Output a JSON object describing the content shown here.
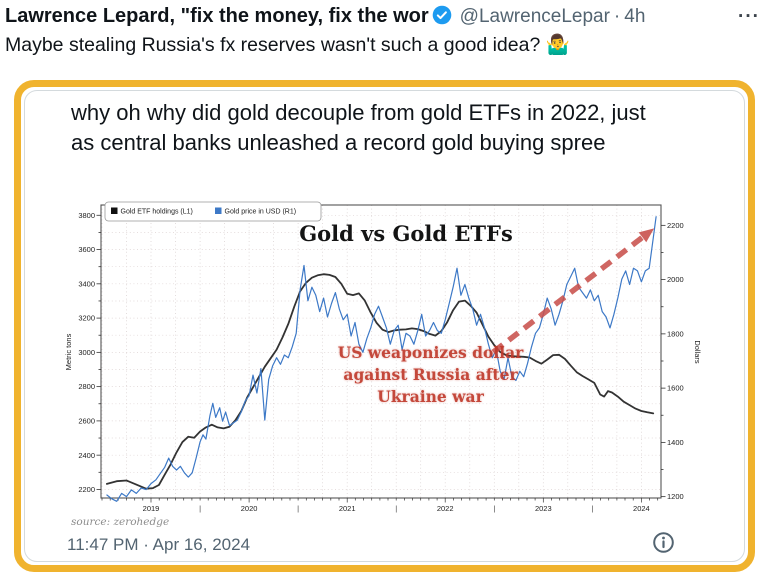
{
  "header": {
    "display_name": "Lawrence Lepard, \"fix the money, fix the wor",
    "handle": "@LawrenceLepar",
    "separator": "·",
    "time": "4h",
    "more_label": "···"
  },
  "tweet": {
    "body": "Maybe stealing Russia's fx reserves wasn't such a good idea? 🤷‍♂️"
  },
  "quote": {
    "text": "why oh why did gold decouple from gold ETFs in 2022, just as central banks unleashed a record gold buying spree",
    "timestamp": "11:47 PM · Apr 16, 2024"
  },
  "colors": {
    "accent_border": "#F0B32E",
    "verified_blue": "#1D9BF0",
    "muted_text": "#536471",
    "body_text": "#0F1419"
  },
  "chart_data": {
    "type": "line",
    "title": "Gold vs Gold ETFs",
    "source_note": "source: zerohedge",
    "grid": true,
    "legend_position": "top-left",
    "x_axis": {
      "lim": [
        2018.49,
        2024.2
      ],
      "year_labels": [
        2019,
        2020,
        2021,
        2022,
        2023,
        2024
      ],
      "mid_tick_label": "|"
    },
    "left_axis": {
      "label": "Metric tons",
      "lim": [
        2150,
        3860
      ],
      "ticks": [
        2200,
        2400,
        2600,
        2800,
        3000,
        3200,
        3400,
        3600,
        3800
      ]
    },
    "right_axis": {
      "label": "Dollars",
      "lim": [
        1195,
        2275
      ],
      "ticks": [
        1200,
        1400,
        1600,
        1800,
        2000,
        2200
      ]
    },
    "annotation": {
      "lines": [
        "US weaponizes dollar",
        "against Russia after",
        "Ukraine war"
      ],
      "x": 2021.85,
      "y": 1725,
      "color": "#C0392B"
    },
    "arrow": {
      "from": [
        2022.49,
        1733
      ],
      "to": [
        2024.13,
        2189
      ],
      "color": "#C9514D"
    },
    "series": [
      {
        "name": "Gold ETF holdings (L1)",
        "axis": "left",
        "color": "#333333",
        "width": 1.8,
        "points": [
          [
            2018.55,
            2232
          ],
          [
            2018.65,
            2248
          ],
          [
            2018.75,
            2252
          ],
          [
            2018.85,
            2228
          ],
          [
            2018.95,
            2204
          ],
          [
            2019.02,
            2208
          ],
          [
            2019.08,
            2226
          ],
          [
            2019.14,
            2286
          ],
          [
            2019.2,
            2346
          ],
          [
            2019.26,
            2416
          ],
          [
            2019.32,
            2476
          ],
          [
            2019.38,
            2508
          ],
          [
            2019.44,
            2502
          ],
          [
            2019.5,
            2538
          ],
          [
            2019.56,
            2562
          ],
          [
            2019.62,
            2578
          ],
          [
            2019.68,
            2562
          ],
          [
            2019.74,
            2556
          ],
          [
            2019.8,
            2566
          ],
          [
            2019.86,
            2604
          ],
          [
            2019.92,
            2656
          ],
          [
            2019.98,
            2736
          ],
          [
            2020.04,
            2796
          ],
          [
            2020.1,
            2856
          ],
          [
            2020.16,
            2916
          ],
          [
            2020.22,
            2966
          ],
          [
            2020.28,
            3016
          ],
          [
            2020.34,
            3086
          ],
          [
            2020.4,
            3166
          ],
          [
            2020.46,
            3266
          ],
          [
            2020.52,
            3356
          ],
          [
            2020.58,
            3406
          ],
          [
            2020.64,
            3436
          ],
          [
            2020.7,
            3450
          ],
          [
            2020.76,
            3456
          ],
          [
            2020.82,
            3452
          ],
          [
            2020.88,
            3440
          ],
          [
            2020.94,
            3400
          ],
          [
            2021.0,
            3342
          ],
          [
            2021.06,
            3334
          ],
          [
            2021.12,
            3344
          ],
          [
            2021.18,
            3302
          ],
          [
            2021.24,
            3232
          ],
          [
            2021.3,
            3172
          ],
          [
            2021.36,
            3132
          ],
          [
            2021.42,
            3118
          ],
          [
            2021.48,
            3128
          ],
          [
            2021.54,
            3132
          ],
          [
            2021.6,
            3134
          ],
          [
            2021.66,
            3140
          ],
          [
            2021.72,
            3136
          ],
          [
            2021.78,
            3124
          ],
          [
            2021.84,
            3108
          ],
          [
            2021.9,
            3098
          ],
          [
            2021.96,
            3124
          ],
          [
            2022.02,
            3176
          ],
          [
            2022.08,
            3246
          ],
          [
            2022.14,
            3296
          ],
          [
            2022.2,
            3302
          ],
          [
            2022.26,
            3272
          ],
          [
            2022.32,
            3232
          ],
          [
            2022.38,
            3162
          ],
          [
            2022.44,
            3092
          ],
          [
            2022.5,
            3042
          ],
          [
            2022.56,
            3002
          ],
          [
            2022.62,
            2984
          ],
          [
            2022.68,
            2978
          ],
          [
            2022.74,
            2976
          ],
          [
            2022.8,
            2974
          ],
          [
            2022.86,
            2970
          ],
          [
            2022.92,
            2950
          ],
          [
            2022.98,
            2934
          ],
          [
            2023.04,
            2958
          ],
          [
            2023.1,
            2984
          ],
          [
            2023.16,
            2986
          ],
          [
            2023.22,
            2962
          ],
          [
            2023.28,
            2922
          ],
          [
            2023.34,
            2884
          ],
          [
            2023.4,
            2862
          ],
          [
            2023.46,
            2842
          ],
          [
            2023.52,
            2822
          ],
          [
            2023.58,
            2754
          ],
          [
            2023.62,
            2742
          ],
          [
            2023.66,
            2774
          ],
          [
            2023.7,
            2766
          ],
          [
            2023.76,
            2742
          ],
          [
            2023.82,
            2712
          ],
          [
            2023.88,
            2692
          ],
          [
            2023.94,
            2672
          ],
          [
            2024.0,
            2658
          ],
          [
            2024.06,
            2650
          ],
          [
            2024.12,
            2644
          ]
        ]
      },
      {
        "name": "Gold price in USD (R1)",
        "axis": "right",
        "color": "#3D79C7",
        "width": 1.2,
        "points": [
          [
            2018.55,
            1206
          ],
          [
            2018.6,
            1192
          ],
          [
            2018.65,
            1183
          ],
          [
            2018.7,
            1212
          ],
          [
            2018.75,
            1200
          ],
          [
            2018.8,
            1225
          ],
          [
            2018.85,
            1212
          ],
          [
            2018.9,
            1232
          ],
          [
            2018.95,
            1226
          ],
          [
            2019.0,
            1248
          ],
          [
            2019.05,
            1262
          ],
          [
            2019.1,
            1288
          ],
          [
            2019.14,
            1308
          ],
          [
            2019.18,
            1342
          ],
          [
            2019.22,
            1312
          ],
          [
            2019.26,
            1298
          ],
          [
            2019.3,
            1312
          ],
          [
            2019.34,
            1288
          ],
          [
            2019.38,
            1272
          ],
          [
            2019.42,
            1288
          ],
          [
            2019.46,
            1342
          ],
          [
            2019.5,
            1402
          ],
          [
            2019.53,
            1428
          ],
          [
            2019.56,
            1412
          ],
          [
            2019.6,
            1498
          ],
          [
            2019.63,
            1544
          ],
          [
            2019.66,
            1492
          ],
          [
            2019.7,
            1528
          ],
          [
            2019.73,
            1478
          ],
          [
            2019.76,
            1512
          ],
          [
            2019.8,
            1462
          ],
          [
            2019.84,
            1472
          ],
          [
            2019.88,
            1482
          ],
          [
            2019.92,
            1512
          ],
          [
            2019.96,
            1552
          ],
          [
            2020.0,
            1572
          ],
          [
            2020.04,
            1648
          ],
          [
            2020.08,
            1582
          ],
          [
            2020.12,
            1672
          ],
          [
            2020.16,
            1482
          ],
          [
            2020.2,
            1632
          ],
          [
            2020.24,
            1682
          ],
          [
            2020.28,
            1712
          ],
          [
            2020.32,
            1688
          ],
          [
            2020.36,
            1722
          ],
          [
            2020.4,
            1712
          ],
          [
            2020.44,
            1752
          ],
          [
            2020.48,
            1802
          ],
          [
            2020.52,
            1962
          ],
          [
            2020.56,
            2052
          ],
          [
            2020.6,
            1922
          ],
          [
            2020.64,
            1972
          ],
          [
            2020.68,
            1942
          ],
          [
            2020.72,
            1882
          ],
          [
            2020.76,
            1932
          ],
          [
            2020.8,
            1862
          ],
          [
            2020.84,
            1912
          ],
          [
            2020.88,
            1952
          ],
          [
            2020.92,
            1892
          ],
          [
            2020.96,
            1852
          ],
          [
            2021.0,
            1872
          ],
          [
            2021.04,
            1792
          ],
          [
            2021.08,
            1842
          ],
          [
            2021.12,
            1762
          ],
          [
            2021.16,
            1732
          ],
          [
            2021.2,
            1782
          ],
          [
            2021.24,
            1822
          ],
          [
            2021.28,
            1872
          ],
          [
            2021.32,
            1902
          ],
          [
            2021.36,
            1862
          ],
          [
            2021.4,
            1822
          ],
          [
            2021.44,
            1762
          ],
          [
            2021.48,
            1812
          ],
          [
            2021.52,
            1832
          ],
          [
            2021.56,
            1742
          ],
          [
            2021.6,
            1802
          ],
          [
            2021.64,
            1792
          ],
          [
            2021.68,
            1762
          ],
          [
            2021.72,
            1812
          ],
          [
            2021.76,
            1872
          ],
          [
            2021.8,
            1792
          ],
          [
            2021.84,
            1812
          ],
          [
            2021.88,
            1842
          ],
          [
            2021.92,
            1812
          ],
          [
            2021.96,
            1802
          ],
          [
            2022.0,
            1852
          ],
          [
            2022.04,
            1912
          ],
          [
            2022.08,
            1972
          ],
          [
            2022.12,
            2042
          ],
          [
            2022.16,
            1942
          ],
          [
            2022.2,
            1982
          ],
          [
            2022.24,
            1932
          ],
          [
            2022.28,
            1892
          ],
          [
            2022.32,
            1832
          ],
          [
            2022.36,
            1872
          ],
          [
            2022.4,
            1822
          ],
          [
            2022.44,
            1762
          ],
          [
            2022.48,
            1712
          ],
          [
            2022.52,
            1742
          ],
          [
            2022.56,
            1662
          ],
          [
            2022.6,
            1632
          ],
          [
            2022.64,
            1712
          ],
          [
            2022.68,
            1642
          ],
          [
            2022.72,
            1628
          ],
          [
            2022.76,
            1662
          ],
          [
            2022.8,
            1642
          ],
          [
            2022.84,
            1692
          ],
          [
            2022.88,
            1752
          ],
          [
            2022.92,
            1802
          ],
          [
            2022.96,
            1822
          ],
          [
            2023.0,
            1872
          ],
          [
            2023.04,
            1932
          ],
          [
            2023.08,
            1892
          ],
          [
            2023.12,
            1832
          ],
          [
            2023.16,
            1872
          ],
          [
            2023.2,
            1922
          ],
          [
            2023.24,
            1982
          ],
          [
            2023.28,
            2012
          ],
          [
            2023.32,
            2042
          ],
          [
            2023.36,
            1972
          ],
          [
            2023.4,
            1952
          ],
          [
            2023.44,
            1932
          ],
          [
            2023.48,
            1962
          ],
          [
            2023.52,
            1922
          ],
          [
            2023.56,
            1942
          ],
          [
            2023.6,
            1882
          ],
          [
            2023.64,
            1862
          ],
          [
            2023.68,
            1822
          ],
          [
            2023.72,
            1872
          ],
          [
            2023.76,
            1932
          ],
          [
            2023.8,
            2002
          ],
          [
            2023.84,
            2032
          ],
          [
            2023.88,
            1982
          ],
          [
            2023.92,
            2042
          ],
          [
            2023.96,
            2032
          ],
          [
            2024.0,
            1992
          ],
          [
            2024.04,
            2032
          ],
          [
            2024.08,
            2042
          ],
          [
            2024.12,
            2152
          ],
          [
            2024.15,
            2232
          ]
        ]
      }
    ]
  }
}
